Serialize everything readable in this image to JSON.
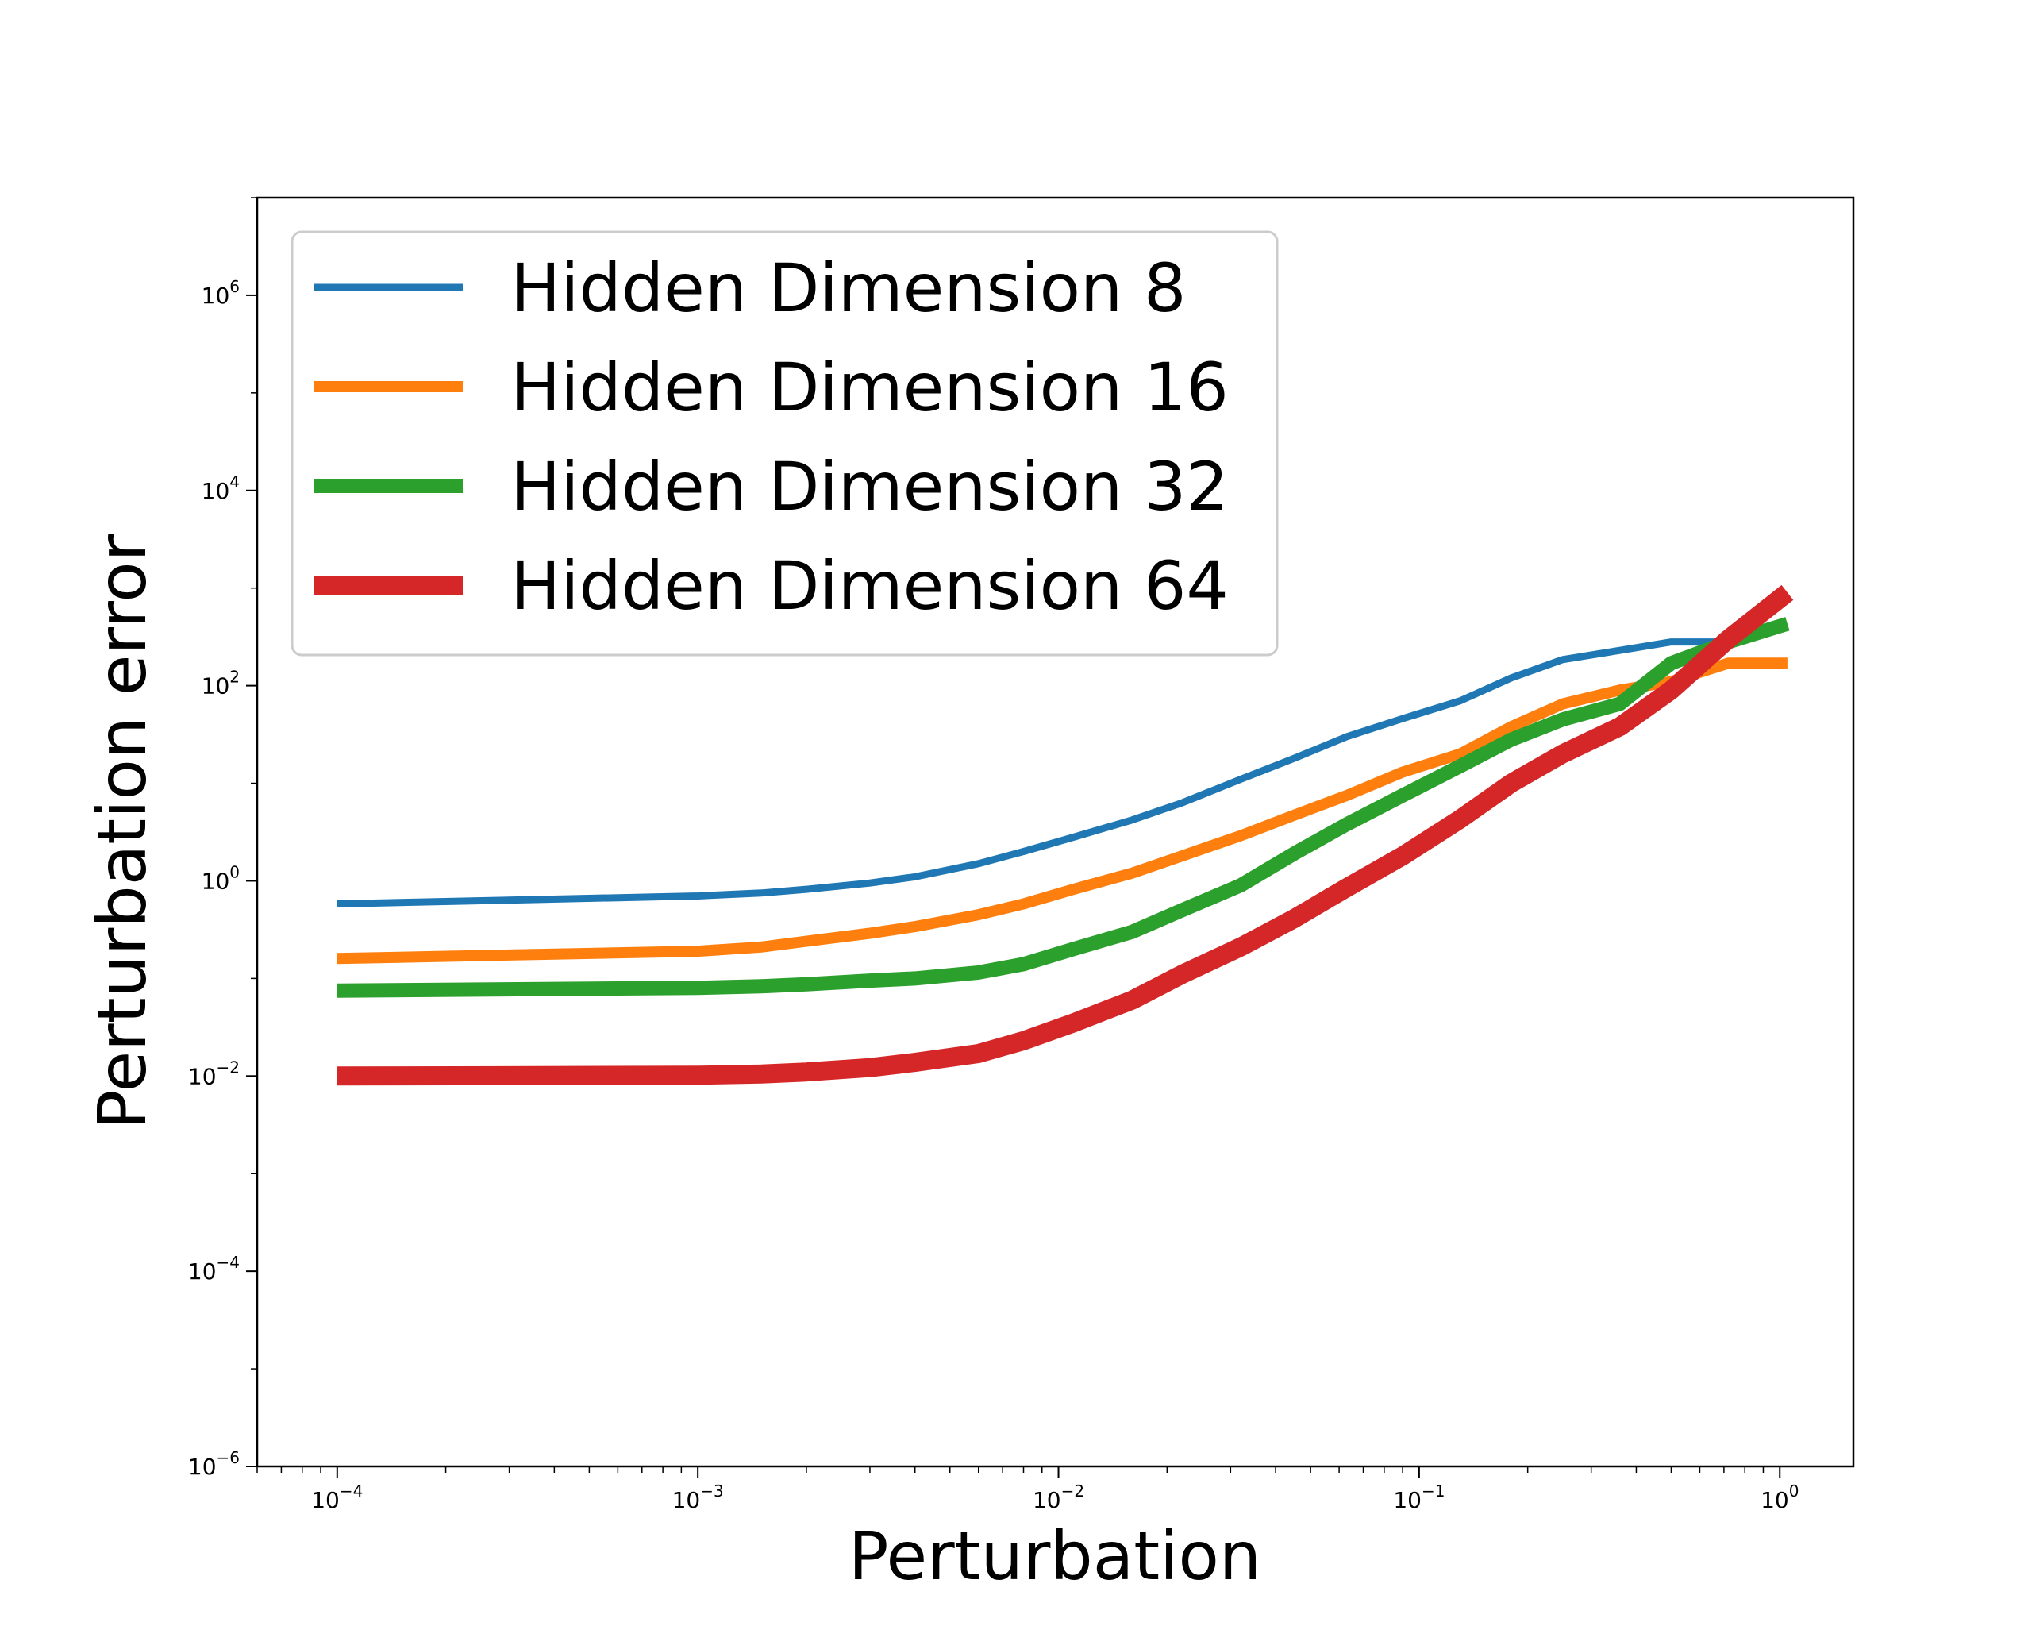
{
  "chart_data": {
    "type": "line",
    "title": "",
    "xlabel": "Perturbation",
    "ylabel": "Perturbation error",
    "xscale": "log",
    "yscale": "log",
    "xlim": [
      6e-05,
      1.6
    ],
    "ylim": [
      1e-06,
      10000000
    ],
    "xticks": [
      {
        "value": 0.0001,
        "base": "10",
        "exp": "−4"
      },
      {
        "value": 0.001,
        "base": "10",
        "exp": "−3"
      },
      {
        "value": 0.01,
        "base": "10",
        "exp": "−2"
      },
      {
        "value": 0.1,
        "base": "10",
        "exp": "−1"
      },
      {
        "value": 1,
        "base": "10",
        "exp": "0"
      }
    ],
    "yticks": [
      {
        "value": 1e-06,
        "base": "10",
        "exp": "−6"
      },
      {
        "value": 0.0001,
        "base": "10",
        "exp": "−4"
      },
      {
        "value": 0.01,
        "base": "10",
        "exp": "−2"
      },
      {
        "value": 1,
        "base": "10",
        "exp": "0"
      },
      {
        "value": 100,
        "base": "10",
        "exp": "2"
      },
      {
        "value": 10000,
        "base": "10",
        "exp": "4"
      },
      {
        "value": 1000000,
        "base": "10",
        "exp": "6"
      }
    ],
    "grid": false,
    "legend_position": "upper-left",
    "series": [
      {
        "name": "Hidden Dimension 8",
        "color": "#1f77b4",
        "line_width": 9,
        "x": [
          0.0001,
          0.001,
          0.0015,
          0.002,
          0.003,
          0.004,
          0.006,
          0.008,
          0.011,
          0.016,
          0.022,
          0.032,
          0.045,
          0.063,
          0.09,
          0.13,
          0.18,
          0.25,
          0.36,
          0.5,
          0.72
        ],
        "y": [
          0.58,
          0.7,
          0.75,
          0.82,
          0.95,
          1.1,
          1.5,
          2.0,
          2.8,
          4.2,
          6.3,
          11,
          18,
          30,
          46,
          70,
          120,
          185,
          230,
          280,
          280
        ]
      },
      {
        "name": "Hidden Dimension 16",
        "color": "#ff7f0e",
        "line_width": 14,
        "x": [
          0.0001,
          0.001,
          0.0015,
          0.002,
          0.003,
          0.004,
          0.006,
          0.008,
          0.011,
          0.016,
          0.022,
          0.032,
          0.045,
          0.063,
          0.09,
          0.13,
          0.18,
          0.25,
          0.36,
          0.5,
          0.72,
          1.05
        ],
        "y": [
          0.16,
          0.19,
          0.21,
          0.24,
          0.29,
          0.34,
          0.45,
          0.58,
          0.82,
          1.2,
          1.8,
          2.9,
          4.7,
          7.5,
          13,
          20,
          38,
          65,
          90,
          110,
          170,
          170
        ]
      },
      {
        "name": "Hidden Dimension 32",
        "color": "#2ca02c",
        "line_width": 18,
        "x": [
          0.0001,
          0.001,
          0.0015,
          0.002,
          0.003,
          0.004,
          0.006,
          0.008,
          0.011,
          0.016,
          0.022,
          0.032,
          0.045,
          0.063,
          0.09,
          0.13,
          0.18,
          0.25,
          0.36,
          0.5,
          0.72,
          1.05
        ],
        "y": [
          0.075,
          0.08,
          0.083,
          0.087,
          0.095,
          0.1,
          0.115,
          0.14,
          0.2,
          0.3,
          0.5,
          0.9,
          1.9,
          3.8,
          7.5,
          15,
          28,
          45,
          65,
          170,
          280,
          430
        ]
      },
      {
        "name": "Hidden Dimension 64",
        "color": "#d62728",
        "line_width": 24,
        "x": [
          0.0001,
          0.001,
          0.0015,
          0.002,
          0.003,
          0.004,
          0.006,
          0.008,
          0.011,
          0.016,
          0.022,
          0.032,
          0.045,
          0.063,
          0.09,
          0.13,
          0.18,
          0.25,
          0.36,
          0.5,
          0.72,
          1.05
        ],
        "y": [
          0.01,
          0.0102,
          0.0105,
          0.011,
          0.0122,
          0.0138,
          0.017,
          0.023,
          0.035,
          0.06,
          0.11,
          0.21,
          0.41,
          0.85,
          1.8,
          4.3,
          10,
          20,
          38,
          90,
          300,
          900
        ]
      }
    ]
  }
}
